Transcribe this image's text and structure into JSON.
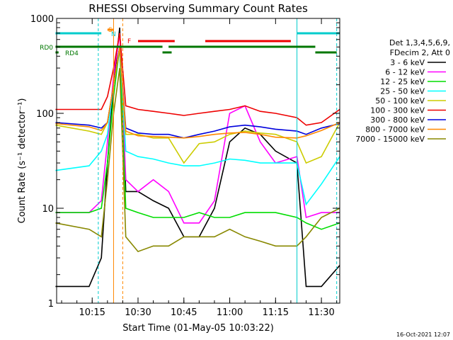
{
  "chart_data": {
    "type": "line",
    "title": "RHESSI Observing Summary Count Rates",
    "xlabel": "Start Time (01-May-05 10:03:22)",
    "ylabel": "Count Rate (s⁻¹ detector⁻¹)",
    "yscale": "log",
    "xlim": [
      "10:03:22",
      "11:36:00"
    ],
    "ylim": [
      1,
      1000
    ],
    "x_ticks": [
      "10:15",
      "10:30",
      "10:45",
      "11:00",
      "11:15",
      "11:30"
    ],
    "y_ticks": [
      "1",
      "10",
      "100",
      "1000"
    ],
    "info_lines": [
      "Det 1,3,4,5,6,9,",
      "FDecim 2, Att 0"
    ],
    "timestamp": "16-Oct-2021 12:07",
    "legend_position": "right",
    "series": [
      {
        "name": "3 - 6 keV",
        "color": "#000000",
        "x": [
          "10:03",
          "10:14",
          "10:18",
          "10:20",
          "10:22",
          "10:24",
          "10:26",
          "10:30",
          "10:35",
          "10:40",
          "10:45",
          "10:50",
          "10:55",
          "11:00",
          "11:05",
          "11:10",
          "11:15",
          "11:22",
          "11:25",
          "11:30",
          "11:36"
        ],
        "y": [
          1.5,
          1.5,
          3,
          30,
          200,
          800,
          15,
          15,
          12,
          10,
          5,
          5,
          10,
          50,
          70,
          60,
          40,
          30,
          1.5,
          1.5,
          2.5
        ]
      },
      {
        "name": "6 - 12 keV",
        "color": "#ff00ff",
        "x": [
          "10:03",
          "10:14",
          "10:18",
          "10:20",
          "10:22",
          "10:24",
          "10:26",
          "10:30",
          "10:35",
          "10:40",
          "10:45",
          "10:50",
          "10:55",
          "11:00",
          "11:05",
          "11:10",
          "11:15",
          "11:22",
          "11:25",
          "11:30",
          "11:36"
        ],
        "y": [
          9,
          9,
          12,
          50,
          250,
          700,
          20,
          15,
          20,
          15,
          7,
          7,
          12,
          100,
          120,
          50,
          30,
          35,
          8,
          9,
          9
        ]
      },
      {
        "name": "12 - 25 keV",
        "color": "#00dd00",
        "x": [
          "10:03",
          "10:14",
          "10:18",
          "10:20",
          "10:22",
          "10:24",
          "10:26",
          "10:30",
          "10:35",
          "10:40",
          "10:45",
          "10:50",
          "10:55",
          "11:00",
          "11:05",
          "11:10",
          "11:15",
          "11:22",
          "11:25",
          "11:30",
          "11:36"
        ],
        "y": [
          9,
          9,
          10,
          30,
          150,
          500,
          10,
          9,
          8,
          8,
          8,
          9,
          8,
          8,
          9,
          9,
          9,
          8,
          7,
          6,
          7
        ]
      },
      {
        "name": "25 - 50 keV",
        "color": "#00ffff",
        "x": [
          "10:03",
          "10:14",
          "10:18",
          "10:20",
          "10:22",
          "10:24",
          "10:26",
          "10:30",
          "10:35",
          "10:40",
          "10:45",
          "10:50",
          "10:55",
          "11:00",
          "11:05",
          "11:10",
          "11:15",
          "11:22",
          "11:25",
          "11:30",
          "11:36"
        ],
        "y": [
          25,
          28,
          40,
          60,
          200,
          500,
          40,
          35,
          33,
          30,
          28,
          28,
          30,
          33,
          32,
          30,
          30,
          30,
          11,
          18,
          35
        ]
      },
      {
        "name": "50 - 100 keV",
        "color": "#cccc00",
        "x": [
          "10:03",
          "10:14",
          "10:18",
          "10:20",
          "10:22",
          "10:24",
          "10:26",
          "10:30",
          "10:35",
          "10:40",
          "10:45",
          "10:50",
          "10:55",
          "11:00",
          "11:05",
          "11:10",
          "11:15",
          "11:22",
          "11:25",
          "11:30",
          "11:36"
        ],
        "y": [
          75,
          65,
          60,
          80,
          200,
          500,
          60,
          60,
          55,
          55,
          30,
          48,
          50,
          60,
          65,
          62,
          60,
          50,
          30,
          35,
          80
        ]
      },
      {
        "name": "100 - 300 keV",
        "color": "#ee0000",
        "x": [
          "10:03",
          "10:14",
          "10:18",
          "10:20",
          "10:22",
          "10:24",
          "10:26",
          "10:30",
          "10:35",
          "10:40",
          "10:45",
          "10:50",
          "10:55",
          "11:00",
          "11:05",
          "11:10",
          "11:15",
          "11:22",
          "11:25",
          "11:30",
          "11:36"
        ],
        "y": [
          110,
          110,
          110,
          150,
          300,
          700,
          120,
          110,
          105,
          100,
          95,
          100,
          105,
          110,
          120,
          105,
          100,
          90,
          75,
          80,
          110
        ]
      },
      {
        "name": "300 - 800 keV",
        "color": "#0000dd",
        "x": [
          "10:03",
          "10:14",
          "10:18",
          "10:20",
          "10:22",
          "10:24",
          "10:26",
          "10:30",
          "10:35",
          "10:40",
          "10:45",
          "10:50",
          "10:55",
          "11:00",
          "11:05",
          "11:10",
          "11:15",
          "11:22",
          "11:25",
          "11:30",
          "11:36"
        ],
        "y": [
          80,
          75,
          70,
          80,
          200,
          500,
          70,
          62,
          60,
          60,
          55,
          60,
          65,
          72,
          75,
          72,
          68,
          65,
          60,
          70,
          78
        ]
      },
      {
        "name": "800 - 7000 keV",
        "color": "#ff8800",
        "x": [
          "10:03",
          "10:14",
          "10:18",
          "10:20",
          "10:22",
          "10:24",
          "10:26",
          "10:30",
          "10:35",
          "10:40",
          "10:45",
          "10:50",
          "10:55",
          "11:00",
          "11:05",
          "11:10",
          "11:15",
          "11:22",
          "11:25",
          "11:30",
          "11:36"
        ],
        "y": [
          78,
          72,
          66,
          80,
          200,
          500,
          65,
          58,
          57,
          56,
          55,
          57,
          60,
          62,
          63,
          60,
          56,
          55,
          58,
          66,
          80
        ]
      },
      {
        "name": "7000 - 15000 keV",
        "color": "#888800",
        "x": [
          "10:03",
          "10:14",
          "10:18",
          "10:20",
          "10:22",
          "10:24",
          "10:26",
          "10:30",
          "10:35",
          "10:40",
          "10:45",
          "10:50",
          "10:55",
          "11:00",
          "11:05",
          "11:10",
          "11:15",
          "11:22",
          "11:25",
          "11:30",
          "11:36"
        ],
        "y": [
          7,
          6,
          5,
          20,
          100,
          300,
          5,
          3.5,
          4,
          4,
          5,
          5,
          5,
          6,
          5,
          4.5,
          4,
          4,
          5,
          8,
          10
        ]
      }
    ],
    "state_bars": [
      {
        "label": "S",
        "color": "#ff8800"
      },
      {
        "label": "N",
        "color": "#00cccc"
      },
      {
        "label": "F",
        "color": "#ee0000"
      },
      {
        "label": "RD0",
        "color": "#007700"
      },
      {
        "label": "RD4",
        "color": "#007700"
      }
    ],
    "grid": false
  }
}
